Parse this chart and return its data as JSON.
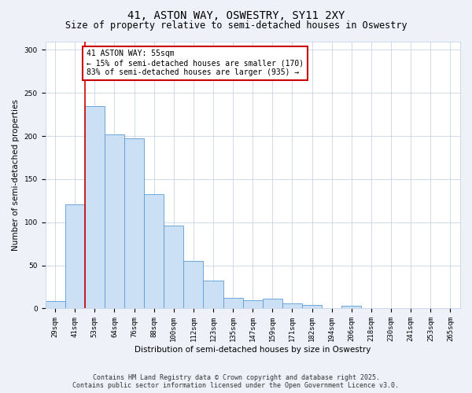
{
  "title_line1": "41, ASTON WAY, OSWESTRY, SY11 2XY",
  "title_line2": "Size of property relative to semi-detached houses in Oswestry",
  "xlabel": "Distribution of semi-detached houses by size in Oswestry",
  "ylabel": "Number of semi-detached properties",
  "categories": [
    "29sqm",
    "41sqm",
    "53sqm",
    "64sqm",
    "76sqm",
    "88sqm",
    "100sqm",
    "112sqm",
    "123sqm",
    "135sqm",
    "147sqm",
    "159sqm",
    "171sqm",
    "182sqm",
    "194sqm",
    "206sqm",
    "218sqm",
    "230sqm",
    "241sqm",
    "253sqm",
    "265sqm"
  ],
  "bar_values": [
    9,
    121,
    235,
    202,
    197,
    133,
    96,
    55,
    32,
    12,
    10,
    11,
    6,
    4,
    0,
    3,
    0,
    0,
    0,
    0,
    0
  ],
  "bar_color": "#cce0f5",
  "bar_edge_color": "#5b9bd5",
  "vline_color": "#cc0000",
  "vline_x": 2.0,
  "annotation_text": "41 ASTON WAY: 55sqm\n← 15% of semi-detached houses are smaller (170)\n83% of semi-detached houses are larger (935) →",
  "annotation_box_color": "#ffffff",
  "annotation_box_edge": "#cc0000",
  "ylim": [
    0,
    310
  ],
  "yticks": [
    0,
    50,
    100,
    150,
    200,
    250,
    300
  ],
  "footer_line1": "Contains HM Land Registry data © Crown copyright and database right 2025.",
  "footer_line2": "Contains public sector information licensed under the Open Government Licence v3.0.",
  "bg_color": "#eef2f8",
  "plot_bg_color": "#ffffff",
  "title_fontsize": 10,
  "subtitle_fontsize": 8.5,
  "axis_label_fontsize": 7.5,
  "tick_fontsize": 6.5,
  "footer_fontsize": 6,
  "annot_fontsize": 7
}
